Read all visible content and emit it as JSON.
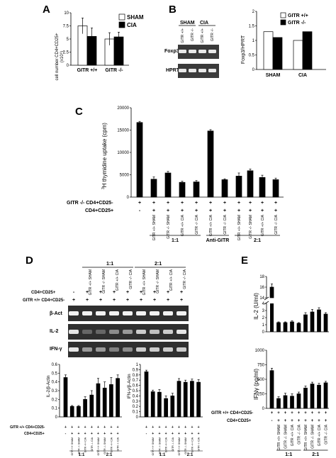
{
  "panels": {
    "A": {
      "letter": "A",
      "ylabel": "cell number CD4+CD25+",
      "ylabel_unit": "(x10⁶)",
      "chart_data": {
        "type": "bar",
        "categories": [
          "GITR +/+",
          "GITR -/-"
        ],
        "ylim": [
          0,
          10
        ],
        "yticks": [
          "0",
          "2.5",
          "5",
          "7.5",
          "10"
        ],
        "legend": "top-right",
        "series": [
          {
            "name": "SHAM",
            "color": "#ffffff",
            "values": [
              7.5,
              5.0
            ],
            "err": [
              1.5,
              1.2
            ]
          },
          {
            "name": "CIA",
            "color": "#000000",
            "values": [
              5.5,
              5.4
            ],
            "err": [
              1.6,
              0.9
            ]
          }
        ]
      }
    },
    "B": {
      "letter": "B",
      "gel_header_sham": "SHAM",
      "gel_header_cia": "CIA",
      "lanes": [
        "GITR +/+",
        "GITR -/-",
        "GITR +/+",
        "GITR -/-"
      ],
      "bands": [
        "Foxp3",
        "HPRT"
      ],
      "ylabel": "Foxp3/HPRT",
      "chart_data": {
        "type": "bar",
        "categories": [
          "SHAM",
          "CIA"
        ],
        "ylim": [
          0,
          2
        ],
        "yticks": [
          "0",
          "0.5",
          "1",
          "1.5",
          "2"
        ],
        "legend": "top",
        "series": [
          {
            "name": "GITR +/+",
            "color": "#ffffff",
            "values": [
              1.3,
              1.0
            ]
          },
          {
            "name": "GITR -/-",
            "color": "#000000",
            "values": [
              1.1,
              1.3
            ]
          }
        ]
      }
    },
    "C": {
      "letter": "C",
      "ylabel_sup": "3",
      "ylabel": "H thymidine uptake (cpm)",
      "row1_label": "GITR -/- CD4+CD25-",
      "row2_label": "CD4+CD25+",
      "row1_marks": [
        "+",
        "+",
        "+",
        "+",
        "+",
        "+",
        "+",
        "+",
        "+",
        "+",
        "+"
      ],
      "row2_marks": [
        "-",
        "+",
        "+",
        "+",
        "+",
        "+",
        "+",
        "+",
        "+",
        "+",
        "+"
      ],
      "sub_labels": [
        "",
        "GITR +/+ SHAM",
        "GITR -/- SHAM",
        "GITR +/+ CIA",
        "GITR -/- CIA",
        "GITR +/+ CIA",
        "GITR -/- CIA",
        "GITR +/+ SHAM",
        "GITR -/- SHAM",
        "GITR +/+ CIA",
        "GITR -/- CIA"
      ],
      "groups": [
        {
          "label": "1:1",
          "from": 1,
          "to": 4
        },
        {
          "label": "Anti-GITR",
          "from": 5,
          "to": 6
        },
        {
          "label": "2:1",
          "from": 7,
          "to": 10
        }
      ],
      "chart_data": {
        "type": "bar",
        "ylim": [
          0,
          20000
        ],
        "yticks": [
          "0",
          "5000",
          "10000",
          "15000",
          "20000"
        ],
        "values": [
          16700,
          4000,
          5400,
          3300,
          3400,
          14800,
          3900,
          4700,
          5900,
          4400,
          3900
        ],
        "err": [
          250,
          500,
          350,
          250,
          300,
          300,
          200,
          700,
          400,
          500,
          350
        ],
        "color": "#000000"
      }
    },
    "D": {
      "letter": "D",
      "group_1": "1:1",
      "group_2": "2:1",
      "row1_label": "CD4+CD25+",
      "row2_label": "GITR +/+ CD4+CD25-",
      "row1_marks": [
        "-",
        "+",
        "+",
        "+",
        "+",
        "+",
        "+",
        "+",
        "+"
      ],
      "row2_marks": [
        "+",
        "+",
        "+",
        "+",
        "+",
        "+",
        "+",
        "+",
        "+"
      ],
      "lane_labels": [
        "",
        "GITR +/+ SHAM",
        "GITR -/- SHAM",
        "GITR +/+ CIA",
        "GITR -/- CIA",
        "GITR +/+ SHAM",
        "GITR -/- SHAM",
        "GITR +/+ CIA",
        "GITR -/- CIA"
      ],
      "bands": [
        "β-Act",
        "IL-2",
        "IFN-γ"
      ],
      "il2_chart": {
        "ylabel": "IL-2/β-Actin",
        "chart_data": {
          "type": "bar",
          "ylim": [
            0,
            0.6
          ],
          "yticks": [
            "0",
            "0.1",
            "0.2",
            "0.3",
            "0.4",
            "0.5",
            "0.6"
          ],
          "values": [
            0.45,
            0.12,
            0.12,
            0.2,
            0.25,
            0.38,
            0.33,
            0.37,
            0.44
          ],
          "err": [
            0.03,
            0.01,
            0.01,
            0.03,
            0.05,
            0.06,
            0.07,
            0.08,
            0.04
          ],
          "color": "#000000"
        }
      },
      "ifn_chart": {
        "ylabel": "IFN-γ/β-Actin",
        "chart_data": {
          "type": "bar",
          "ylim": [
            0,
            1
          ],
          "yticks": [
            "0",
            "0.1",
            "0.2",
            "0.3",
            "0.4",
            "0.5",
            "0.6",
            "0.7",
            "0.8",
            "0.9",
            "1"
          ],
          "values": [
            0.86,
            0.48,
            0.47,
            0.35,
            0.4,
            0.68,
            0.66,
            0.68,
            0.66
          ],
          "err": [
            0.03,
            0.03,
            0.05,
            0.05,
            0.05,
            0.05,
            0.04,
            0.04,
            0.05
          ],
          "color": "#000000"
        }
      },
      "mini_row1": "GITR +/+ CD4+CD25-",
      "mini_row2": "CD4+CD25+",
      "mini_marks1": [
        "+",
        "+",
        "+",
        "+",
        "+",
        "+",
        "+",
        "+",
        "+"
      ],
      "mini_marks2": [
        "-",
        "+",
        "+",
        "+",
        "+",
        "+",
        "+",
        "+",
        "+"
      ]
    },
    "E": {
      "letter": "E",
      "il2": {
        "ylabel": "IL-2 (U/ml)",
        "yticks_low": [
          "0",
          "1",
          "2",
          "3",
          "4"
        ],
        "yticks_high": [
          "14",
          "16",
          "18"
        ],
        "chart_data": {
          "type": "bar",
          "values": [
            16,
            1.3,
            1.3,
            1.4,
            1.2,
            2.4,
            2.8,
            3.1,
            2.5
          ],
          "err": [
            0.6,
            0.1,
            0.1,
            0.15,
            0.1,
            0.3,
            0.35,
            0.3,
            0.2
          ],
          "color": "#000000"
        }
      },
      "ifn": {
        "ylabel": "IFNγ (pg/ml)",
        "chart_data": {
          "type": "bar",
          "ylim": [
            0,
            1000
          ],
          "yticks": [
            "0",
            "250",
            "500",
            "750",
            "1000"
          ],
          "values": [
            650,
            170,
            220,
            210,
            250,
            350,
            420,
            400,
            440
          ],
          "err": [
            40,
            30,
            40,
            40,
            30,
            35,
            30,
            30,
            25
          ],
          "color": "#000000"
        }
      },
      "row1_label": "GITR +/+ CD4+CD25-",
      "row2_label": "CD4+CD25+",
      "row1_marks": [
        "+",
        "+",
        "+",
        "+",
        "+",
        "+",
        "+",
        "+",
        "+"
      ],
      "row2_marks": [
        "-",
        "+",
        "+",
        "+",
        "+",
        "+",
        "+",
        "+",
        "+"
      ],
      "lane_labels": [
        "",
        "GITR +/+ SHAM",
        "GITR -/- SHAM",
        "GITR +/+ CIA",
        "GITR -/- CIA",
        "GITR +/+ SHAM",
        "GITR -/- SHAM",
        "GITR +/+ CIA",
        "GITR -/- CIA"
      ],
      "group_1": "1:1",
      "group_2": "2:1"
    }
  }
}
